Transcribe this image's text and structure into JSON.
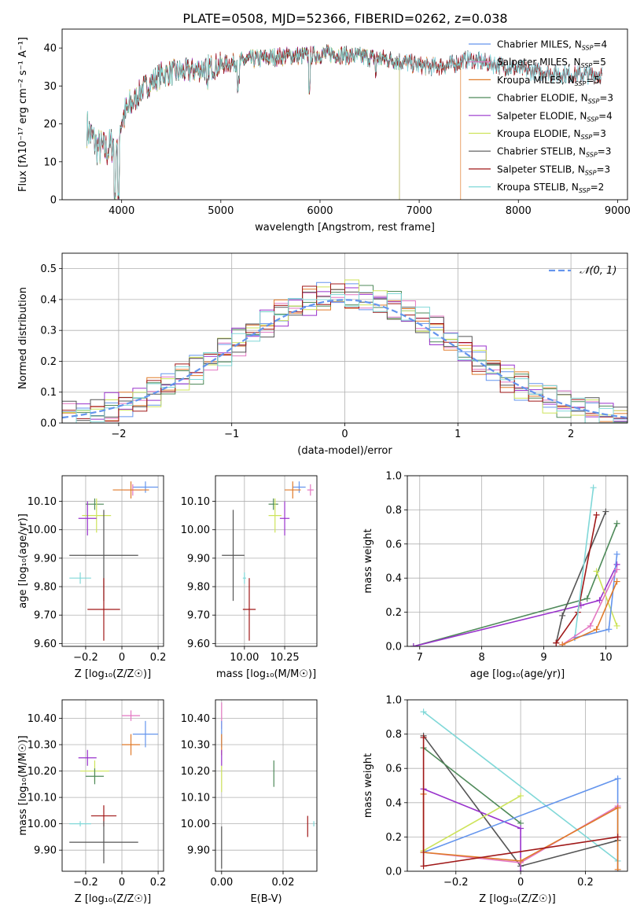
{
  "figure": {
    "title": "PLATE=0508, MJD=52366, FIBERID=0262, z=0.038"
  },
  "chart_data": [
    {
      "id": "spectrum",
      "type": "line",
      "xlabel": "wavelength [Angstrom, rest frame]",
      "ylabel": "Flux [fλ10⁻¹⁷ erg cm⁻² s⁻¹ A⁻¹]",
      "xlim": [
        3400,
        9100
      ],
      "ylim": [
        0,
        45
      ],
      "xticks": [
        4000,
        5000,
        6000,
        7000,
        8000,
        9000
      ],
      "yticks": [
        0,
        10,
        20,
        30,
        40
      ],
      "grid": false,
      "legend_position": "top-right",
      "continuum": {
        "x": [
          3650,
          3750,
          3850,
          3950,
          4000,
          4100,
          4200,
          4300,
          4400,
          4500,
          4700,
          4900,
          5100,
          5300,
          5500,
          5700,
          5900,
          6100,
          6300,
          6500,
          6700,
          6900,
          7100,
          7300,
          7500,
          7700,
          7900,
          8100,
          8300,
          8500,
          8700,
          8850
        ],
        "y": [
          19,
          14,
          13,
          16,
          21,
          25,
          29,
          31,
          33,
          33.5,
          34,
          35,
          36,
          37,
          37.5,
          38,
          38,
          38.5,
          38,
          37.5,
          37,
          36,
          35,
          35.5,
          37,
          36,
          35,
          34,
          33.5,
          33,
          33,
          33
        ]
      },
      "series": [
        {
          "name": "Chabrier MILES, N_SSP=4",
          "label_main": "Chabrier MILES, N",
          "label_sub": "SSP",
          "label_tail": "=4",
          "color": "#6495ed",
          "end": 8850
        },
        {
          "name": "Salpeter MILES, N_SSP=5",
          "label_main": "Salpeter MILES, N",
          "label_sub": "SSP",
          "label_tail": "=5",
          "color": "#e377c2",
          "end": 8850
        },
        {
          "name": "Kroupa MILES, N_SSP=5",
          "label_main": "Kroupa MILES, N",
          "label_sub": "SSP",
          "label_tail": "=5",
          "color": "#e07b2a",
          "end": 7420
        },
        {
          "name": "Chabrier ELODIE, N_SSP=3",
          "label_main": "Chabrier ELODIE, N",
          "label_sub": "SSP",
          "label_tail": "=3",
          "color": "#4f8a5a",
          "end": 6800
        },
        {
          "name": "Salpeter ELODIE, N_SSP=4",
          "label_main": "Salpeter ELODIE, N",
          "label_sub": "SSP",
          "label_tail": "=4",
          "color": "#9932cc",
          "end": 6800
        },
        {
          "name": "Kroupa ELODIE, N_SSP=3",
          "label_main": "Kroupa ELODIE, N",
          "label_sub": "SSP",
          "label_tail": "=3",
          "color": "#cde35a",
          "end": 6800
        },
        {
          "name": "Chabrier STELIB, N_SSP=3",
          "label_main": "Chabrier STELIB, N",
          "label_sub": "SSP",
          "label_tail": "=3",
          "color": "#555555",
          "end": 8850
        },
        {
          "name": "Salpeter STELIB, N_SSP=3",
          "label_main": "Salpeter STELIB, N",
          "label_sub": "SSP",
          "label_tail": "=3",
          "color": "#a01818",
          "end": 8850
        },
        {
          "name": "Kroupa STELIB, N_SSP=2",
          "label_main": "Kroupa STELIB, N",
          "label_sub": "SSP",
          "label_tail": "=2",
          "color": "#80d8d8",
          "end": 8850
        }
      ]
    },
    {
      "id": "residuals",
      "type": "histogram",
      "xlabel": "(data-model)/error",
      "ylabel": "Normed distribution",
      "xlim": [
        -2.5,
        2.5
      ],
      "ylim": [
        0,
        0.55
      ],
      "xticks": [
        -2,
        -1,
        0,
        1,
        2
      ],
      "yticks": [
        0.0,
        0.1,
        0.2,
        0.3,
        0.4,
        0.5
      ],
      "grid": true,
      "legend_position": "top-right",
      "gaussian": {
        "name": "N(0,1)",
        "label": "𝒩(0, 1)",
        "color": "#6495ed",
        "mu": 0,
        "sigma": 1
      },
      "bins": [
        -2.5,
        2.5,
        40
      ],
      "series_colors": [
        "#6495ed",
        "#e377c2",
        "#e07b2a",
        "#4f8a5a",
        "#9932cc",
        "#cde35a",
        "#555555",
        "#a01818",
        "#80d8d8"
      ]
    },
    {
      "id": "age-vs-Z",
      "type": "scatter",
      "xlabel": "Z [log₁₀(Z/Z☉)]",
      "ylabel": "age  [log₁₀(age/yr)]",
      "xlim": [
        -0.33,
        0.23
      ],
      "ylim": [
        9.59,
        10.19
      ],
      "xticks": [
        -0.2,
        0.0,
        0.2
      ],
      "yticks": [
        9.6,
        9.7,
        9.8,
        9.9,
        10.0,
        10.1
      ],
      "grid": true,
      "points": [
        {
          "color": "#6495ed",
          "x": 0.13,
          "y": 10.15,
          "xerr": 0.07,
          "yerr": 0.02
        },
        {
          "color": "#e377c2",
          "x": 0.06,
          "y": 10.14,
          "xerr": 0.05,
          "yerr": 0.02
        },
        {
          "color": "#e07b2a",
          "x": 0.05,
          "y": 10.14,
          "xerr": 0.1,
          "yerr": 0.03
        },
        {
          "color": "#4f8a5a",
          "x": -0.15,
          "y": 10.09,
          "xerr": 0.05,
          "yerr": 0.02
        },
        {
          "color": "#cde35a",
          "x": -0.14,
          "y": 10.05,
          "xerr": 0.08,
          "yerr": 0.06
        },
        {
          "color": "#9932cc",
          "x": -0.19,
          "y": 10.04,
          "xerr": 0.05,
          "yerr": 0.06
        },
        {
          "color": "#555555",
          "x": -0.1,
          "y": 9.91,
          "xerr": 0.19,
          "yerr": 0.16
        },
        {
          "color": "#80d8d8",
          "x": -0.23,
          "y": 9.83,
          "xerr": 0.06,
          "yerr": 0.02
        },
        {
          "color": "#a01818",
          "x": -0.1,
          "y": 9.72,
          "xerr": 0.09,
          "yerr": 0.11
        }
      ]
    },
    {
      "id": "age-vs-mass",
      "type": "scatter",
      "xlabel": "mass [log₁₀(M/M☉)]",
      "ylabel": "",
      "xlim": [
        9.82,
        10.45
      ],
      "ylim": [
        9.59,
        10.19
      ],
      "xticks": [
        10.0,
        10.25
      ],
      "xticklabels": [
        "10.00",
        "10.25"
      ],
      "yticks": [
        9.6,
        9.7,
        9.8,
        9.9,
        10.0,
        10.1
      ],
      "grid": true,
      "points": [
        {
          "color": "#6495ed",
          "x": 10.34,
          "y": 10.15,
          "xerr": 0.04,
          "yerr": 0.02
        },
        {
          "color": "#e377c2",
          "x": 10.41,
          "y": 10.14,
          "xerr": 0.02,
          "yerr": 0.02
        },
        {
          "color": "#e07b2a",
          "x": 10.3,
          "y": 10.14,
          "xerr": 0.05,
          "yerr": 0.03
        },
        {
          "color": "#4f8a5a",
          "x": 10.18,
          "y": 10.09,
          "xerr": 0.03,
          "yerr": 0.02
        },
        {
          "color": "#cde35a",
          "x": 10.19,
          "y": 10.05,
          "xerr": 0.04,
          "yerr": 0.06
        },
        {
          "color": "#9932cc",
          "x": 10.25,
          "y": 10.04,
          "xerr": 0.03,
          "yerr": 0.06
        },
        {
          "color": "#555555",
          "x": 9.93,
          "y": 9.91,
          "xerr": 0.07,
          "yerr": 0.16
        },
        {
          "color": "#80d8d8",
          "x": 10.0,
          "y": 9.83,
          "xerr": 0.01,
          "yerr": 0.02
        },
        {
          "color": "#a01818",
          "x": 10.03,
          "y": 9.72,
          "xerr": 0.04,
          "yerr": 0.11
        }
      ]
    },
    {
      "id": "massweight-vs-age",
      "type": "line",
      "xlabel": "age  [log₁₀(age/yr)]",
      "ylabel": "mass weight",
      "xlim": [
        6.8,
        10.35
      ],
      "ylim": [
        0,
        1.0
      ],
      "xticks": [
        7,
        8,
        9,
        10
      ],
      "yticks": [
        0.0,
        0.2,
        0.4,
        0.6,
        0.8,
        1.0
      ],
      "grid": true,
      "series": [
        {
          "color": "#4f8a5a",
          "x": [
            6.9,
            9.7,
            10.18
          ],
          "y": [
            0.0,
            0.28,
            0.72
          ]
        },
        {
          "color": "#9932cc",
          "x": [
            6.9,
            9.6,
            9.9,
            10.18
          ],
          "y": [
            0.0,
            0.24,
            0.27,
            0.48
          ]
        },
        {
          "color": "#cde35a",
          "x": [
            9.85,
            10.18
          ],
          "y": [
            0.44,
            0.12
          ]
        },
        {
          "color": "#555555",
          "x": [
            9.2,
            9.3,
            10.0
          ],
          "y": [
            0.02,
            0.18,
            0.79
          ]
        },
        {
          "color": "#a01818",
          "x": [
            9.2,
            9.55,
            9.85
          ],
          "y": [
            0.02,
            0.2,
            0.77
          ]
        },
        {
          "color": "#80d8d8",
          "x": [
            9.5,
            9.8
          ],
          "y": [
            0.05,
            0.93
          ]
        },
        {
          "color": "#6495ed",
          "x": [
            9.5,
            10.05,
            10.18
          ],
          "y": [
            0.05,
            0.1,
            0.54
          ]
        },
        {
          "color": "#e377c2",
          "x": [
            9.3,
            9.75,
            10.18
          ],
          "y": [
            0.01,
            0.12,
            0.45
          ]
        },
        {
          "color": "#e07b2a",
          "x": [
            9.3,
            9.85,
            10.18
          ],
          "y": [
            0.01,
            0.1,
            0.38
          ]
        }
      ]
    },
    {
      "id": "mass-vs-Z",
      "type": "scatter",
      "xlabel": "Z [log₁₀(Z/Z☉)]",
      "ylabel": "mass [log₁₀(M/M☉)]",
      "xlim": [
        -0.33,
        0.23
      ],
      "ylim": [
        9.82,
        10.47
      ],
      "xticks": [
        -0.2,
        0.0,
        0.2
      ],
      "yticks": [
        9.9,
        10.0,
        10.1,
        10.2,
        10.3,
        10.4
      ],
      "grid": true,
      "points": [
        {
          "color": "#e377c2",
          "x": 0.05,
          "y": 10.41,
          "xerr": 0.05,
          "yerr": 0.02
        },
        {
          "color": "#6495ed",
          "x": 0.13,
          "y": 10.34,
          "xerr": 0.07,
          "yerr": 0.05
        },
        {
          "color": "#e07b2a",
          "x": 0.05,
          "y": 10.3,
          "xerr": 0.05,
          "yerr": 0.04
        },
        {
          "color": "#9932cc",
          "x": -0.19,
          "y": 10.25,
          "xerr": 0.05,
          "yerr": 0.03
        },
        {
          "color": "#cde35a",
          "x": -0.15,
          "y": 10.2,
          "xerr": 0.08,
          "yerr": 0.04
        },
        {
          "color": "#4f8a5a",
          "x": -0.15,
          "y": 10.18,
          "xerr": 0.05,
          "yerr": 0.03
        },
        {
          "color": "#a01818",
          "x": -0.1,
          "y": 10.03,
          "xerr": 0.07,
          "yerr": 0.04
        },
        {
          "color": "#80d8d8",
          "x": -0.23,
          "y": 10.0,
          "xerr": 0.06,
          "yerr": 0.01
        },
        {
          "color": "#555555",
          "x": -0.1,
          "y": 9.93,
          "xerr": 0.19,
          "yerr": 0.08
        }
      ]
    },
    {
      "id": "mass-vs-ebv",
      "type": "scatter",
      "xlabel": "E(B-V)",
      "ylabel": "",
      "xlim": [
        -0.002,
        0.031
      ],
      "ylim": [
        9.82,
        10.47
      ],
      "xticks": [
        0.0,
        0.02
      ],
      "xticklabels": [
        "0.00",
        "0.02"
      ],
      "yticks": [
        9.9,
        10.0,
        10.1,
        10.2,
        10.3,
        10.4
      ],
      "grid": true,
      "points": [
        {
          "color": "#e377c2",
          "x": 0.0,
          "y": 10.41,
          "xerr": 0,
          "yerr": 0.05
        },
        {
          "color": "#6495ed",
          "x": 0.0,
          "y": 10.34,
          "xerr": 0,
          "yerr": 0.05
        },
        {
          "color": "#e07b2a",
          "x": 0.0,
          "y": 10.3,
          "xerr": 0,
          "yerr": 0.04
        },
        {
          "color": "#9932cc",
          "x": 0.0,
          "y": 10.25,
          "xerr": 0,
          "yerr": 0.03
        },
        {
          "color": "#cde35a",
          "x": 0.0,
          "y": 10.17,
          "xerr": 0,
          "yerr": 0.05
        },
        {
          "color": "#4f8a5a",
          "x": 0.017,
          "y": 10.19,
          "xerr": 0,
          "yerr": 0.05
        },
        {
          "color": "#a01818",
          "x": 0.028,
          "y": 9.99,
          "xerr": 0,
          "yerr": 0.04
        },
        {
          "color": "#80d8d8",
          "x": 0.03,
          "y": 10.0,
          "xerr": 0,
          "yerr": 0.01
        },
        {
          "color": "#555555",
          "x": 0.0,
          "y": 9.91,
          "xerr": 0,
          "yerr": 0.08
        }
      ]
    },
    {
      "id": "massweight-vs-Z",
      "type": "line",
      "xlabel": "Z [log₁₀(Z/Z☉)]",
      "ylabel": "mass weight",
      "xlim": [
        -0.35,
        0.33
      ],
      "ylim": [
        0,
        1.0
      ],
      "xticks": [
        -0.2,
        0.0,
        0.2
      ],
      "yticks": [
        0.0,
        0.2,
        0.4,
        0.6,
        0.8,
        1.0
      ],
      "grid": true,
      "series": [
        {
          "color": "#80d8d8",
          "x": [
            -0.3,
            0.3
          ],
          "y": [
            0.93,
            0.06
          ]
        },
        {
          "color": "#555555",
          "x": [
            -0.3,
            0.0,
            0.3
          ],
          "y": [
            0.79,
            0.03,
            0.18
          ]
        },
        {
          "color": "#4f8a5a",
          "x": [
            -0.3,
            0.0
          ],
          "y": [
            0.72,
            0.28
          ]
        },
        {
          "color": "#9932cc",
          "x": [
            -0.3,
            0.0,
            0.0
          ],
          "y": [
            0.48,
            0.25,
            0.0
          ]
        },
        {
          "color": "#cde35a",
          "x": [
            -0.3,
            0.0
          ],
          "y": [
            0.12,
            0.44
          ]
        },
        {
          "color": "#6495ed",
          "x": [
            -0.3,
            0.3,
            0.3
          ],
          "y": [
            0.11,
            0.54,
            0.0
          ]
        },
        {
          "color": "#e377c2",
          "x": [
            -0.3,
            0.0,
            0.3
          ],
          "y": [
            0.11,
            0.05,
            0.38
          ]
        },
        {
          "color": "#e07b2a",
          "x": [
            -0.3,
            -0.3,
            0.0,
            0.3,
            0.3
          ],
          "y": [
            0.45,
            0.11,
            0.06,
            0.37,
            0.01
          ]
        },
        {
          "color": "#a01818",
          "x": [
            -0.3,
            -0.3,
            0.3
          ],
          "y": [
            0.78,
            0.03,
            0.2
          ]
        }
      ]
    }
  ]
}
